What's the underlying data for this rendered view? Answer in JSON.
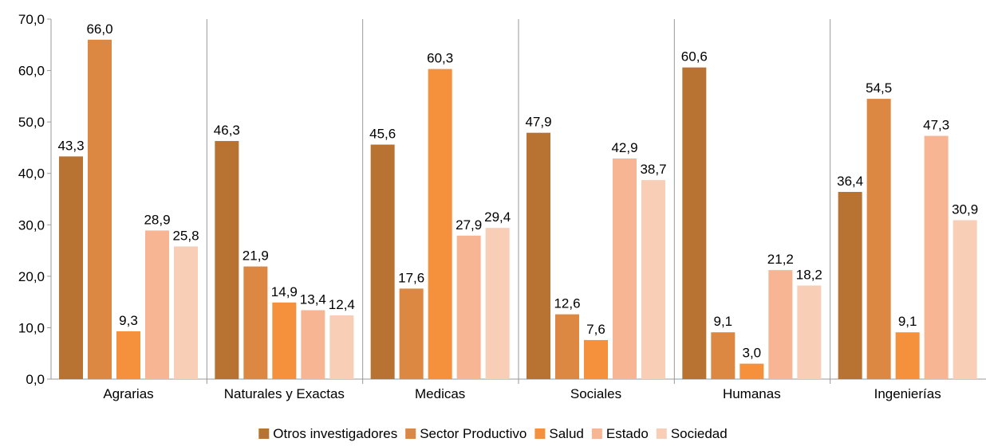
{
  "chart_data": {
    "type": "bar",
    "categories": [
      "Agrarias",
      "Naturales y Exactas",
      "Medicas",
      "Sociales",
      "Humanas",
      "Ingenierías"
    ],
    "series": [
      {
        "name": "Otros investigadores",
        "color": "#B87333",
        "values": [
          43.3,
          46.3,
          45.6,
          47.9,
          60.6,
          36.4
        ]
      },
      {
        "name": "Sector Productivo",
        "color": "#DC8742",
        "values": [
          66.0,
          21.9,
          17.6,
          12.6,
          9.1,
          54.5
        ]
      },
      {
        "name": "Salud",
        "color": "#F5913D",
        "values": [
          9.3,
          14.9,
          60.3,
          7.6,
          3.0,
          9.1
        ]
      },
      {
        "name": "Estado",
        "color": "#F7B593",
        "values": [
          28.9,
          13.4,
          27.9,
          42.9,
          21.2,
          47.3
        ]
      },
      {
        "name": "Sociedad",
        "color": "#F8CFB6",
        "values": [
          25.8,
          12.4,
          29.4,
          38.7,
          18.2,
          30.9
        ]
      }
    ],
    "value_labels": [
      [
        "43,3",
        "46,3",
        "45,6",
        "47,9",
        "60,6",
        "36,4"
      ],
      [
        "66,0",
        "21,9",
        "17,6",
        "12,6",
        "9,1",
        "54,5"
      ],
      [
        "9,3",
        "14,9",
        "60,3",
        "7,6",
        "3,0",
        "9,1"
      ],
      [
        "28,9",
        "13,4",
        "27,9",
        "42,9",
        "21,2",
        "47,3"
      ],
      [
        "25,8",
        "12,4",
        "29,4",
        "38,7",
        "18,2",
        "30,9"
      ]
    ],
    "yticks": [
      0,
      10,
      20,
      30,
      40,
      50,
      60,
      70
    ],
    "ytick_labels": [
      "0,0",
      "10,0",
      "20,0",
      "30,0",
      "40,0",
      "50,0",
      "60,0",
      "70,0"
    ],
    "ylim": [
      0,
      70
    ],
    "legend_position": "bottom",
    "category_separators": true
  }
}
